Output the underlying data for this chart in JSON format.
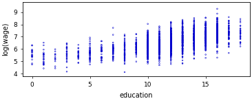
{
  "title": "",
  "xlabel": "education",
  "ylabel": "log(wage)",
  "xlim": [
    -0.8,
    18.8
  ],
  "ylim": [
    3.8,
    9.8
  ],
  "yticks": [
    4,
    5,
    6,
    7,
    8,
    9
  ],
  "xticks": [
    0,
    5,
    10,
    15
  ],
  "point_color": "#0000CD",
  "bg_color": "#FFFFFF",
  "education_levels": [
    0,
    1,
    2,
    3,
    4,
    5,
    6,
    7,
    8,
    9,
    10,
    11,
    12,
    13,
    14,
    15,
    16,
    17,
    18
  ],
  "counts": [
    18,
    22,
    12,
    28,
    22,
    38,
    32,
    48,
    55,
    50,
    180,
    160,
    320,
    260,
    190,
    140,
    170,
    55,
    28
  ],
  "base_mean": [
    5.6,
    5.5,
    5.4,
    5.6,
    5.6,
    5.7,
    5.7,
    5.8,
    5.9,
    6.05,
    6.2,
    6.3,
    6.5,
    6.7,
    6.9,
    7.0,
    7.2,
    7.3,
    7.4
  ],
  "base_std": [
    0.45,
    0.55,
    0.55,
    0.55,
    0.5,
    0.5,
    0.5,
    0.5,
    0.55,
    0.55,
    0.6,
    0.6,
    0.65,
    0.65,
    0.65,
    0.6,
    0.65,
    0.6,
    0.55
  ],
  "marker_size": 1.5,
  "linewidth": 0.4,
  "xlabel_fontsize": 7,
  "ylabel_fontsize": 7,
  "tick_labelsize": 6.5
}
